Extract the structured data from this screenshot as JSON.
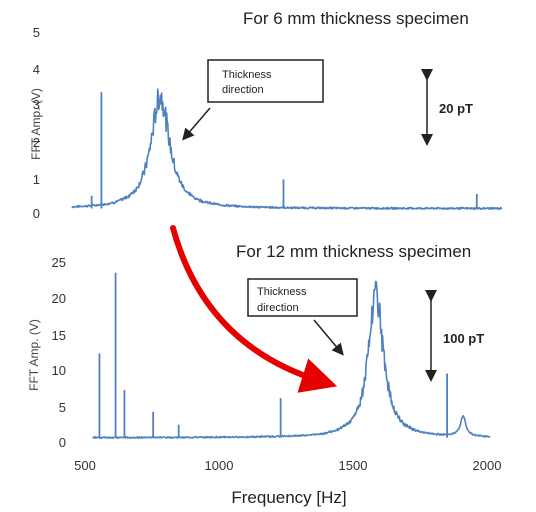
{
  "chart_data": [
    {
      "type": "line",
      "title": "For 6 mm thickness specimen",
      "ylabel": "FFT Amp. (V)",
      "ylim": [
        0,
        5
      ],
      "yticks": [
        "0",
        "1",
        "2",
        "3",
        "4",
        "5"
      ],
      "xlim": [
        475,
        2010
      ],
      "color": "#4f81bd",
      "baseline": 0.15,
      "resonance": {
        "center": 790,
        "peak": 3.1,
        "width": 40
      },
      "spikes": [
        {
          "x": 545,
          "y": 0.5
        },
        {
          "x": 580,
          "y": 3.35
        },
        {
          "x": 1230,
          "y": 0.95
        },
        {
          "x": 1920,
          "y": 0.55
        }
      ],
      "annotation": {
        "text_line1": "Thickness",
        "text_line2": "direction"
      },
      "scale_bar": {
        "label": "20 pT"
      }
    },
    {
      "type": "line",
      "title": "For 12 mm thickness specimen",
      "ylabel": "FFT Amp. (V)",
      "ylim": [
        0,
        25
      ],
      "yticks": [
        "0",
        "5",
        "10",
        "15",
        "20",
        "25"
      ],
      "xlim": [
        475,
        2010
      ],
      "xticks": [
        "500",
        "1000",
        "1500",
        "2000"
      ],
      "xlabel": "Frequency [Hz]",
      "color": "#4f81bd",
      "baseline": 0.6,
      "resonance": {
        "center": 1585,
        "peak": 19.5,
        "width": 35
      },
      "secondary": {
        "center": 1910,
        "peak": 2.8,
        "width": 12
      },
      "spikes": [
        {
          "x": 555,
          "y": 12.3
        },
        {
          "x": 615,
          "y": 23.5
        },
        {
          "x": 648,
          "y": 7.2
        },
        {
          "x": 755,
          "y": 4.2
        },
        {
          "x": 850,
          "y": 2.4
        },
        {
          "x": 1230,
          "y": 6.1
        },
        {
          "x": 1850,
          "y": 9.5
        }
      ],
      "annotation": {
        "text_line1": "Thickness",
        "text_line2": "direction"
      },
      "scale_bar": {
        "label": "100 pT"
      }
    }
  ]
}
